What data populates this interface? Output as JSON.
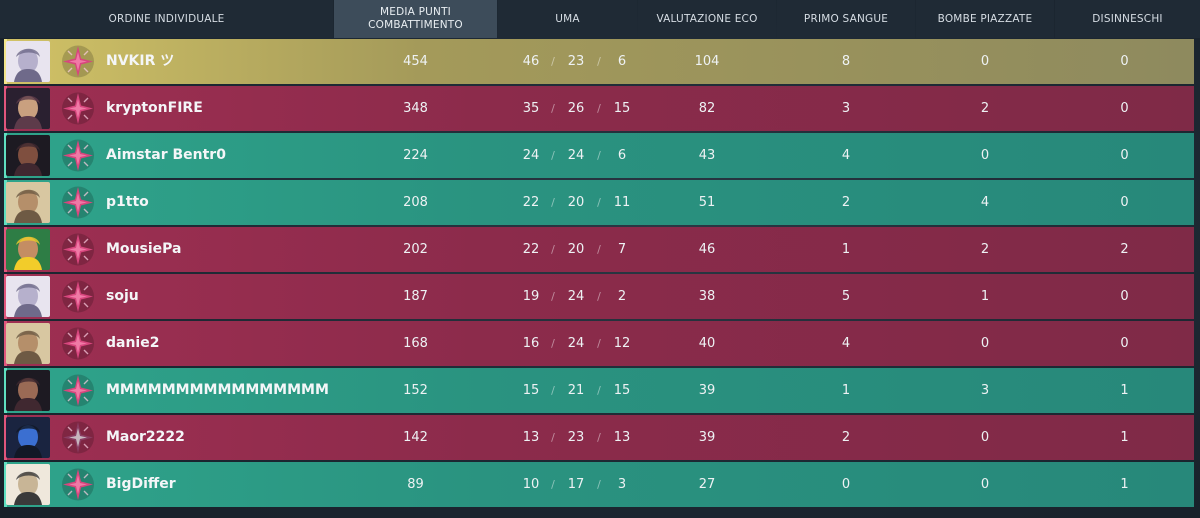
{
  "colors": {
    "gold_row": "#c7b964",
    "red_row": "#8f2c4c",
    "green_row": "#2b9783",
    "header_bg": "#1f2a35",
    "header_active_bg": "#3d4c5a"
  },
  "headers": {
    "individual_order": "ORDINE INDIVIDUALE",
    "combat_score_line1": "MEDIA PUNTI",
    "combat_score_line2": "COMBATTIMENTO",
    "kda": "UMA",
    "econ_rating": "VALUTAZIONE ECO",
    "first_bloods": "PRIMO SANGUE",
    "plants": "BOMBE PIAZZATE",
    "defuses": "DISINNESCHI"
  },
  "players": [
    {
      "name": "NVKIR ツ",
      "team": "gold",
      "agent_icon": "agent-portrait-icon",
      "rank_icon": "rank-star-icon",
      "acs": "454",
      "k": "46",
      "d": "23",
      "a": "6",
      "econ": "104",
      "fb": "8",
      "plants": "0",
      "defuses": "0"
    },
    {
      "name": "kryptonFIRE",
      "team": "red",
      "agent_icon": "agent-portrait-icon",
      "rank_icon": "rank-star-icon",
      "acs": "348",
      "k": "35",
      "d": "26",
      "a": "15",
      "econ": "82",
      "fb": "3",
      "plants": "2",
      "defuses": "0"
    },
    {
      "name": "Aimstar Bentr0",
      "team": "green",
      "agent_icon": "agent-portrait-icon",
      "rank_icon": "rank-star-icon",
      "acs": "224",
      "k": "24",
      "d": "24",
      "a": "6",
      "econ": "43",
      "fb": "4",
      "plants": "0",
      "defuses": "0"
    },
    {
      "name": "p1tto",
      "team": "green",
      "agent_icon": "agent-portrait-icon",
      "rank_icon": "rank-star-icon",
      "acs": "208",
      "k": "22",
      "d": "20",
      "a": "11",
      "econ": "51",
      "fb": "2",
      "plants": "4",
      "defuses": "0"
    },
    {
      "name": "MousiePa",
      "team": "red",
      "agent_icon": "agent-portrait-icon",
      "rank_icon": "rank-star-icon",
      "acs": "202",
      "k": "22",
      "d": "20",
      "a": "7",
      "econ": "46",
      "fb": "1",
      "plants": "2",
      "defuses": "2"
    },
    {
      "name": "soju",
      "team": "red",
      "agent_icon": "agent-portrait-icon",
      "rank_icon": "rank-star-icon",
      "acs": "187",
      "k": "19",
      "d": "24",
      "a": "2",
      "econ": "38",
      "fb": "5",
      "plants": "1",
      "defuses": "0"
    },
    {
      "name": "danie2",
      "team": "red",
      "agent_icon": "agent-portrait-icon",
      "rank_icon": "rank-star-icon",
      "acs": "168",
      "k": "16",
      "d": "24",
      "a": "12",
      "econ": "40",
      "fb": "4",
      "plants": "0",
      "defuses": "0"
    },
    {
      "name": "MMMMMMMMMMMMMMMM",
      "team": "green",
      "agent_icon": "agent-portrait-icon",
      "rank_icon": "rank-star-icon",
      "acs": "152",
      "k": "15",
      "d": "21",
      "a": "15",
      "econ": "39",
      "fb": "1",
      "plants": "3",
      "defuses": "1"
    },
    {
      "name": "Maor2222",
      "team": "red",
      "agent_icon": "agent-portrait-icon",
      "rank_icon": "rank-star-icon",
      "acs": "142",
      "k": "13",
      "d": "23",
      "a": "13",
      "econ": "39",
      "fb": "2",
      "plants": "0",
      "defuses": "1"
    },
    {
      "name": "BigDiffer",
      "team": "green",
      "agent_icon": "agent-portrait-icon",
      "rank_icon": "rank-star-icon",
      "acs": "89",
      "k": "10",
      "d": "17",
      "a": "3",
      "econ": "27",
      "fb": "0",
      "plants": "0",
      "defuses": "1"
    }
  ]
}
